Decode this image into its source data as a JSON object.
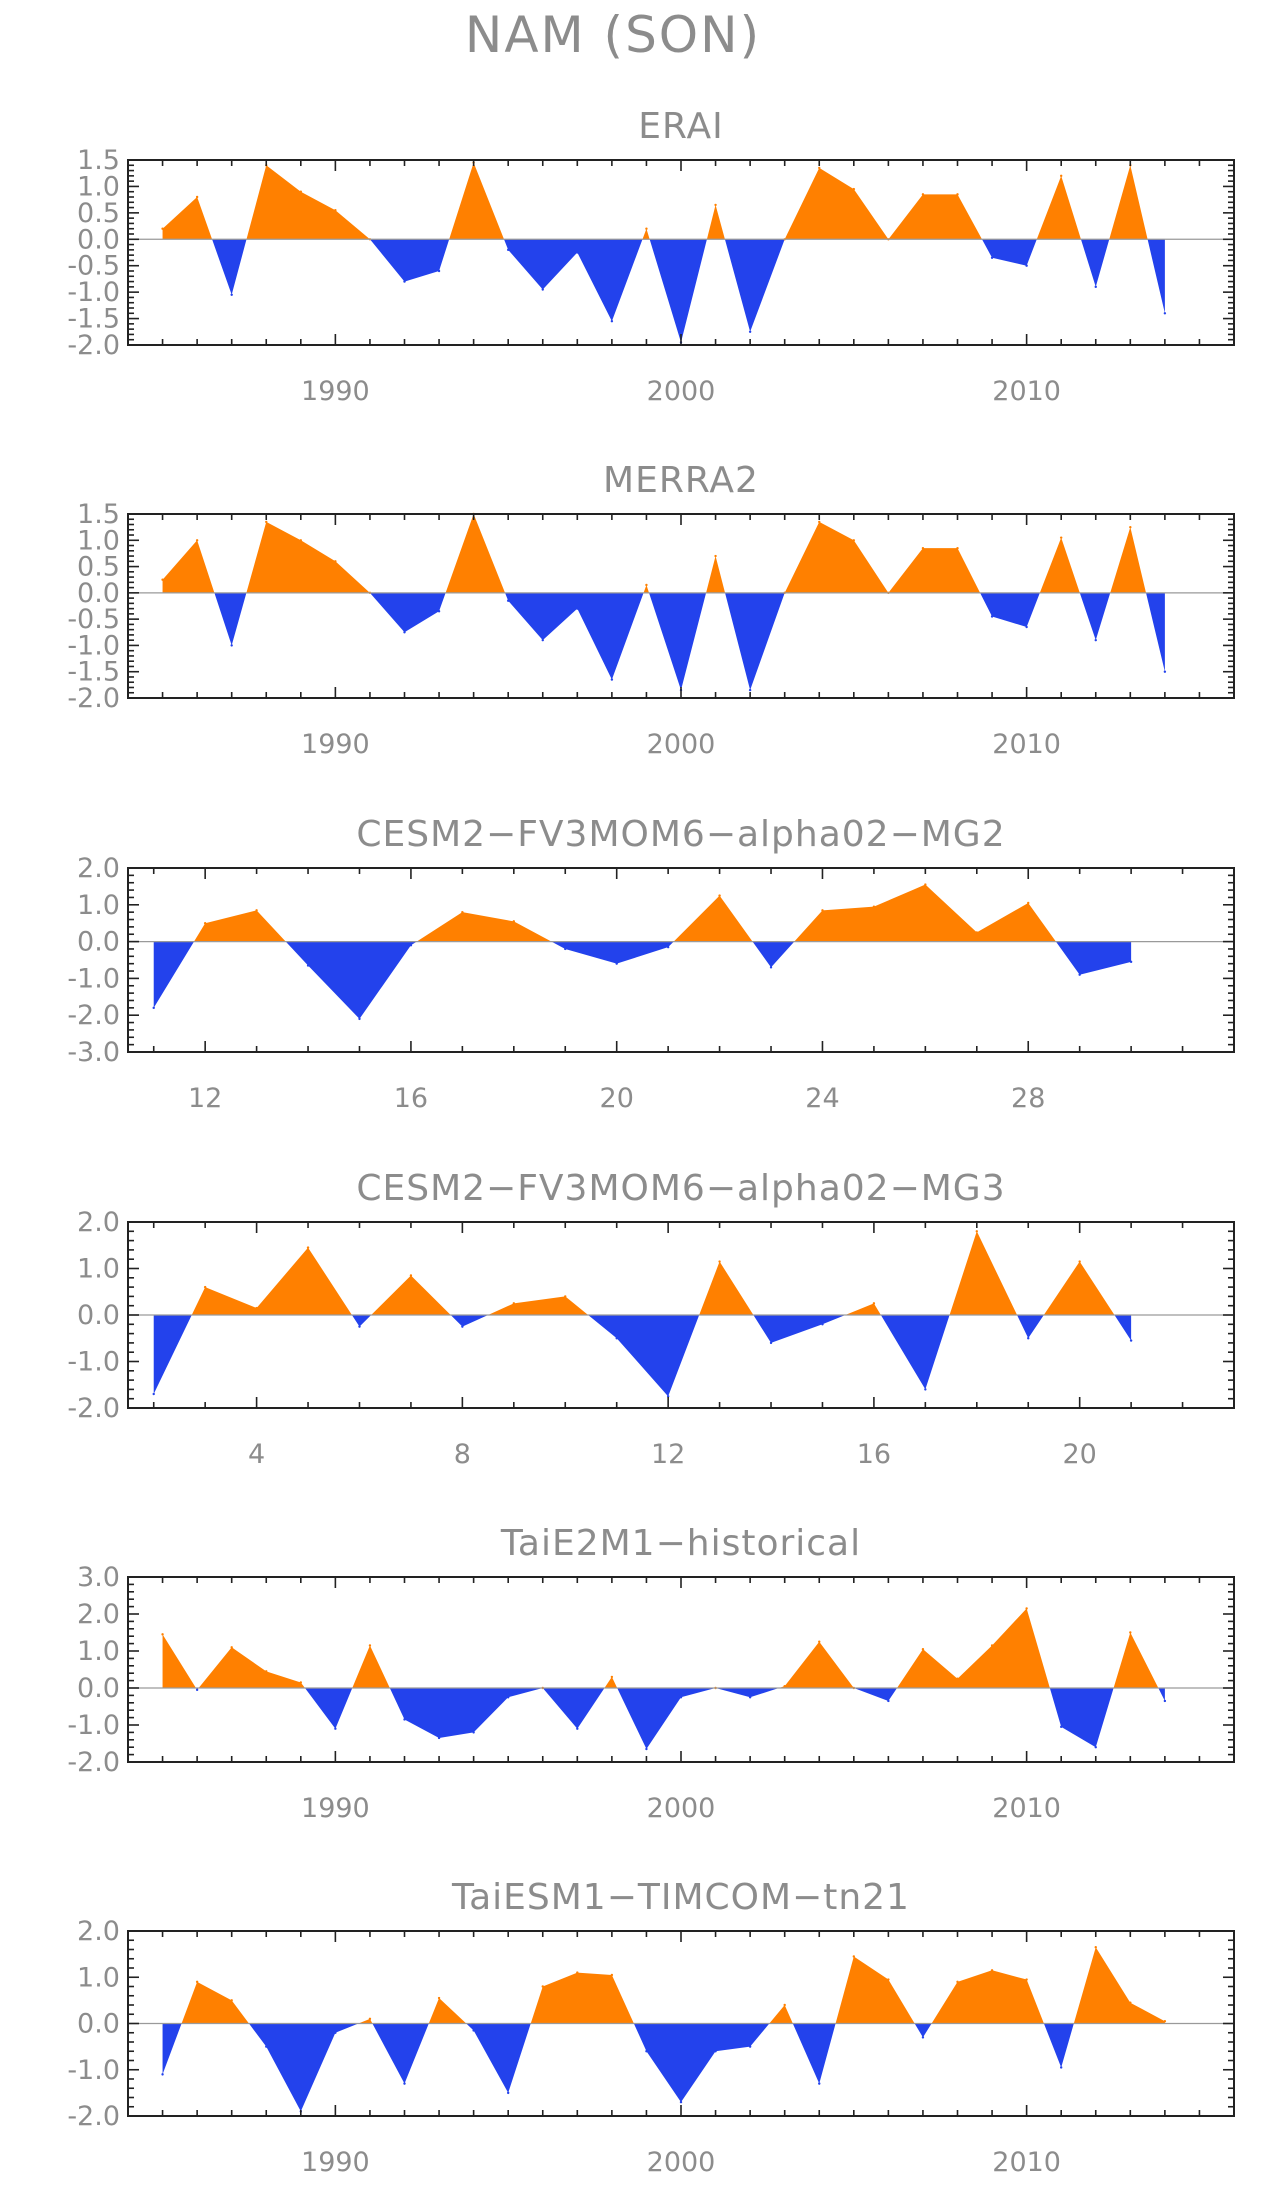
{
  "figure": {
    "title": "NAM (SON)",
    "pos_color": "#ff8000",
    "neg_color": "#2342ec"
  },
  "chart_data": [
    {
      "type": "area",
      "title": "ERAI",
      "xlim": [
        1984,
        2016
      ],
      "ylim": [
        -2.0,
        1.5
      ],
      "xticks": [
        1990,
        2000,
        2010
      ],
      "xticklabels": [
        "1990",
        "2000",
        "2010"
      ],
      "yticks": [
        1.5,
        1.0,
        0.5,
        0.0,
        -0.5,
        -1.0,
        -1.5,
        -2.0
      ],
      "yticklabels": [
        "1.5",
        "1.0",
        "0.5",
        "0.0",
        "-0.5",
        "-1.0",
        "-1.5",
        "-2.0"
      ],
      "x": [
        1985,
        1986,
        1987,
        1988,
        1989,
        1990,
        1991,
        1992,
        1993,
        1994,
        1995,
        1996,
        1997,
        1998,
        1999,
        2000,
        2001,
        2002,
        2003,
        2004,
        2005,
        2006,
        2007,
        2008,
        2009,
        2010,
        2011,
        2012,
        2013,
        2014
      ],
      "values": [
        0.2,
        0.8,
        -1.05,
        1.4,
        0.9,
        0.55,
        0.0,
        -0.8,
        -0.6,
        1.45,
        -0.2,
        -0.95,
        -0.25,
        -1.55,
        0.2,
        -1.95,
        0.65,
        -1.75,
        0.0,
        1.35,
        0.95,
        0.0,
        0.85,
        0.85,
        -0.35,
        -0.5,
        1.2,
        -0.9,
        1.4,
        -1.4
      ]
    },
    {
      "type": "area",
      "title": "MERRA2",
      "xlim": [
        1984,
        2016
      ],
      "ylim": [
        -2.0,
        1.5
      ],
      "xticks": [
        1990,
        2000,
        2010
      ],
      "xticklabels": [
        "1990",
        "2000",
        "2010"
      ],
      "yticks": [
        1.5,
        1.0,
        0.5,
        0.0,
        -0.5,
        -1.0,
        -1.5,
        -2.0
      ],
      "yticklabels": [
        "1.5",
        "1.0",
        "0.5",
        "0.0",
        "-0.5",
        "-1.0",
        "-1.5",
        "-2.0"
      ],
      "x": [
        1985,
        1986,
        1987,
        1988,
        1989,
        1990,
        1991,
        1992,
        1993,
        1994,
        1995,
        1996,
        1997,
        1998,
        1999,
        2000,
        2001,
        2002,
        2003,
        2004,
        2005,
        2006,
        2007,
        2008,
        2009,
        2010,
        2011,
        2012,
        2013,
        2014
      ],
      "values": [
        0.25,
        1.0,
        -1.0,
        1.35,
        1.0,
        0.6,
        0.0,
        -0.75,
        -0.35,
        1.5,
        -0.15,
        -0.9,
        -0.3,
        -1.65,
        0.15,
        -1.85,
        0.7,
        -1.85,
        0.0,
        1.35,
        1.0,
        0.0,
        0.85,
        0.85,
        -0.45,
        -0.65,
        1.05,
        -0.9,
        1.25,
        -1.5
      ]
    },
    {
      "type": "area",
      "title": "CESM2−FV3MOM6−alpha02−MG2",
      "xlim": [
        10.5,
        32
      ],
      "ylim": [
        -3.0,
        2.0
      ],
      "xticks": [
        12,
        16,
        20,
        24,
        28
      ],
      "xticklabels": [
        "12",
        "16",
        "20",
        "24",
        "28"
      ],
      "yticks": [
        2.0,
        1.0,
        0.0,
        -1.0,
        -2.0,
        -3.0
      ],
      "yticklabels": [
        "2.0",
        "1.0",
        "0.0",
        "-1.0",
        "-2.0",
        "-3.0"
      ],
      "x": [
        11,
        12,
        13,
        14,
        15,
        16,
        17,
        18,
        19,
        20,
        21,
        22,
        23,
        24,
        25,
        26,
        27,
        28,
        29,
        30
      ],
      "values": [
        -1.8,
        0.5,
        0.85,
        -0.65,
        -2.1,
        -0.1,
        0.8,
        0.55,
        -0.2,
        -0.6,
        -0.15,
        1.25,
        -0.7,
        0.85,
        0.95,
        1.55,
        0.25,
        1.05,
        -0.9,
        -0.55
      ]
    },
    {
      "type": "area",
      "title": "CESM2−FV3MOM6−alpha02−MG3",
      "xlim": [
        1.5,
        23
      ],
      "ylim": [
        -2.0,
        2.0
      ],
      "xticks": [
        4,
        8,
        12,
        16,
        20
      ],
      "xticklabels": [
        "4",
        "8",
        "12",
        "16",
        "20"
      ],
      "yticks": [
        2.0,
        1.0,
        0.0,
        -1.0,
        -2.0
      ],
      "yticklabels": [
        "2.0",
        "1.0",
        "0.0",
        "-1.0",
        "-2.0"
      ],
      "x": [
        2,
        3,
        4,
        5,
        6,
        7,
        8,
        9,
        10,
        11,
        12,
        13,
        14,
        15,
        16,
        17,
        18,
        19,
        20,
        21
      ],
      "values": [
        -1.7,
        0.6,
        0.15,
        1.45,
        -0.25,
        0.85,
        -0.25,
        0.25,
        0.4,
        -0.5,
        -1.75,
        1.15,
        -0.6,
        -0.2,
        0.25,
        -1.6,
        1.8,
        -0.5,
        1.15,
        -0.55
      ]
    },
    {
      "type": "area",
      "title": "TaiE2M1−historical",
      "xlim": [
        1984,
        2016
      ],
      "ylim": [
        -2.0,
        3.0
      ],
      "xticks": [
        1990,
        2000,
        2010
      ],
      "xticklabels": [
        "1990",
        "2000",
        "2010"
      ],
      "yticks": [
        3.0,
        2.0,
        1.0,
        0.0,
        -1.0,
        -2.0
      ],
      "yticklabels": [
        "3.0",
        "2.0",
        "1.0",
        "0.0",
        "-1.0",
        "-2.0"
      ],
      "x": [
        1985,
        1986,
        1987,
        1988,
        1989,
        1990,
        1991,
        1992,
        1993,
        1994,
        1995,
        1996,
        1997,
        1998,
        1999,
        2000,
        2001,
        2002,
        2003,
        2004,
        2005,
        2006,
        2007,
        2008,
        2009,
        2010,
        2011,
        2012,
        2013,
        2014
      ],
      "values": [
        1.45,
        -0.05,
        1.1,
        0.45,
        0.15,
        -1.1,
        1.15,
        -0.85,
        -1.35,
        -1.2,
        -0.25,
        0.0,
        -1.1,
        0.3,
        -1.65,
        -0.25,
        0.0,
        -0.25,
        0.05,
        1.25,
        0.0,
        -0.35,
        1.05,
        0.25,
        1.15,
        2.15,
        -1.05,
        -1.6,
        1.5,
        -0.35
      ]
    },
    {
      "type": "area",
      "title": "TaiESM1−TIMCOM−tn21",
      "xlim": [
        1984,
        2016
      ],
      "ylim": [
        -2.0,
        2.0
      ],
      "xticks": [
        1990,
        2000,
        2010
      ],
      "xticklabels": [
        "1990",
        "2000",
        "2010"
      ],
      "yticks": [
        2.0,
        1.0,
        0.0,
        -1.0,
        -2.0
      ],
      "yticklabels": [
        "2.0",
        "1.0",
        "0.0",
        "-1.0",
        "-2.0"
      ],
      "x": [
        1985,
        1986,
        1987,
        1988,
        1989,
        1990,
        1991,
        1992,
        1993,
        1994,
        1995,
        1996,
        1997,
        1998,
        1999,
        2000,
        2001,
        2002,
        2003,
        2004,
        2005,
        2006,
        2007,
        2008,
        2009,
        2010,
        2011,
        2012,
        2013,
        2014
      ],
      "values": [
        -1.1,
        0.9,
        0.5,
        -0.5,
        -1.9,
        -0.2,
        0.1,
        -1.3,
        0.55,
        -0.15,
        -1.5,
        0.8,
        1.1,
        1.05,
        -0.6,
        -1.7,
        -0.6,
        -0.5,
        0.4,
        -1.3,
        1.45,
        0.95,
        -0.3,
        0.9,
        1.15,
        0.95,
        -0.95,
        1.65,
        0.45,
        0.05
      ]
    }
  ]
}
